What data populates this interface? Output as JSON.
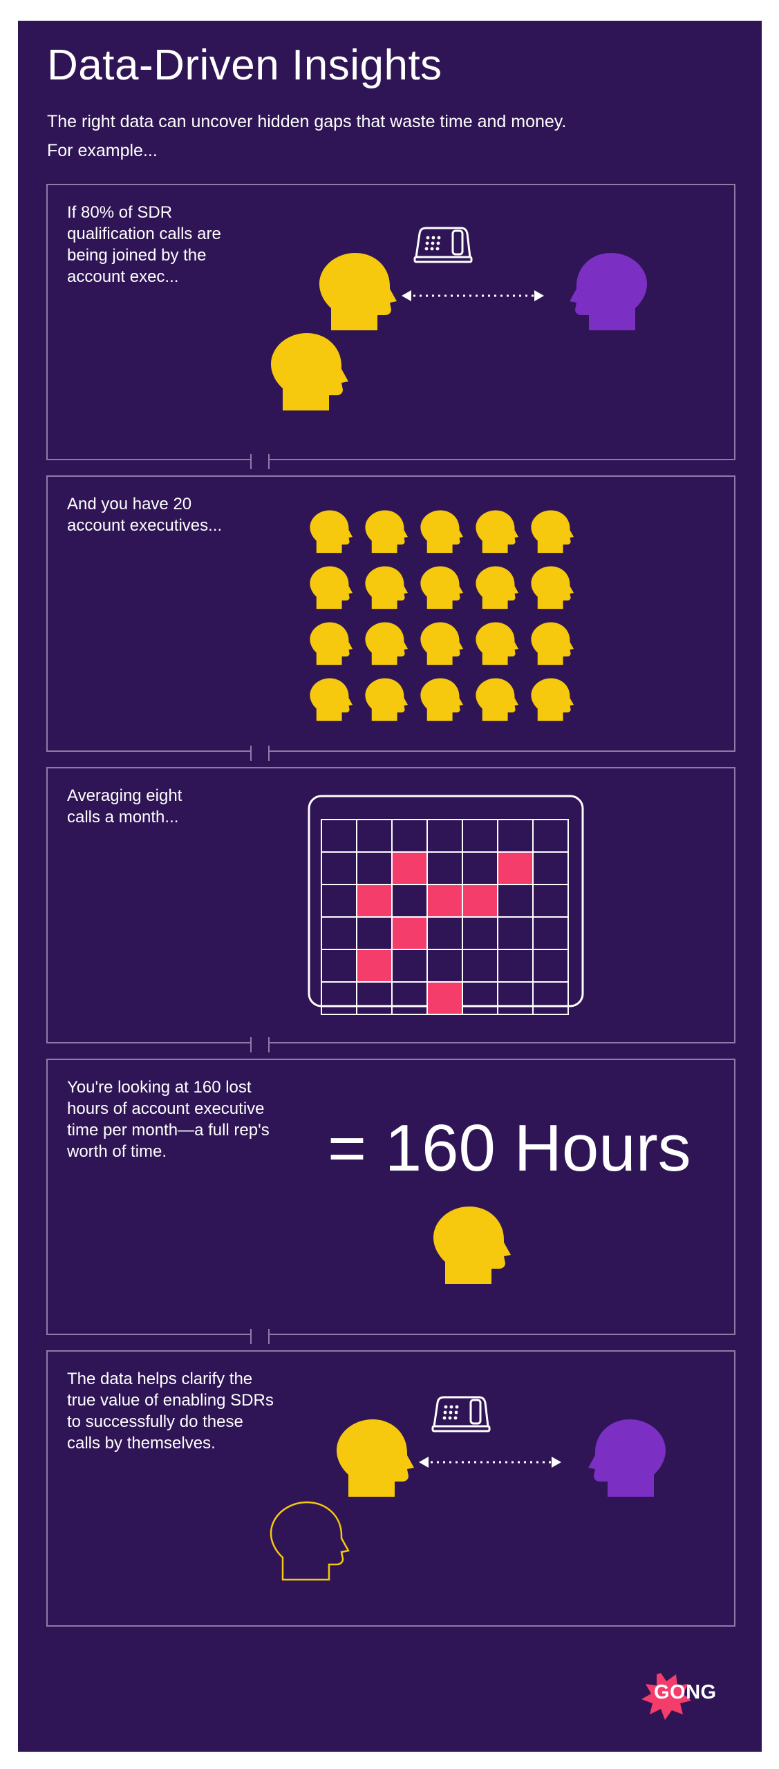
{
  "title": "Data-Driven Insights",
  "intro": "The right data can uncover hidden gaps that waste time and money.\nFor example...",
  "panels": [
    {
      "text": "If 80% of SDR\nqualification calls are\nbeing joined by the\naccount exec..."
    },
    {
      "text": "And you have 20\naccount executives..."
    },
    {
      "text": "Averaging eight\ncalls a month..."
    },
    {
      "text": "You're looking at 160 lost\nhours of account executive\ntime per month—a full rep's\nworth of time."
    },
    {
      "text": "The data helps clarify the\ntrue value of enabling SDRs\nto successfully do these\ncalls by themselves."
    }
  ],
  "big_stat": "= 160 Hours",
  "calendar": {
    "rows": 6,
    "cols": 7,
    "highlighted_cells": [
      [
        1,
        2
      ],
      [
        1,
        5
      ],
      [
        2,
        1
      ],
      [
        2,
        3
      ],
      [
        2,
        4
      ],
      [
        3,
        2
      ],
      [
        4,
        1
      ],
      [
        5,
        3
      ]
    ]
  },
  "ae_count": 20,
  "logo": "GONG",
  "colors": {
    "background": "#2f1555",
    "border": "#8f7ba8",
    "ae_head": "#f6c90e",
    "sdr_head": "#7b2fc3",
    "calendar_highlight": "#f43d6a",
    "logo_burst": "#f43d6a"
  },
  "icons": [
    "head-icon",
    "phone-icon",
    "double-arrow-icon",
    "calendar-icon",
    "gong-burst-icon"
  ]
}
